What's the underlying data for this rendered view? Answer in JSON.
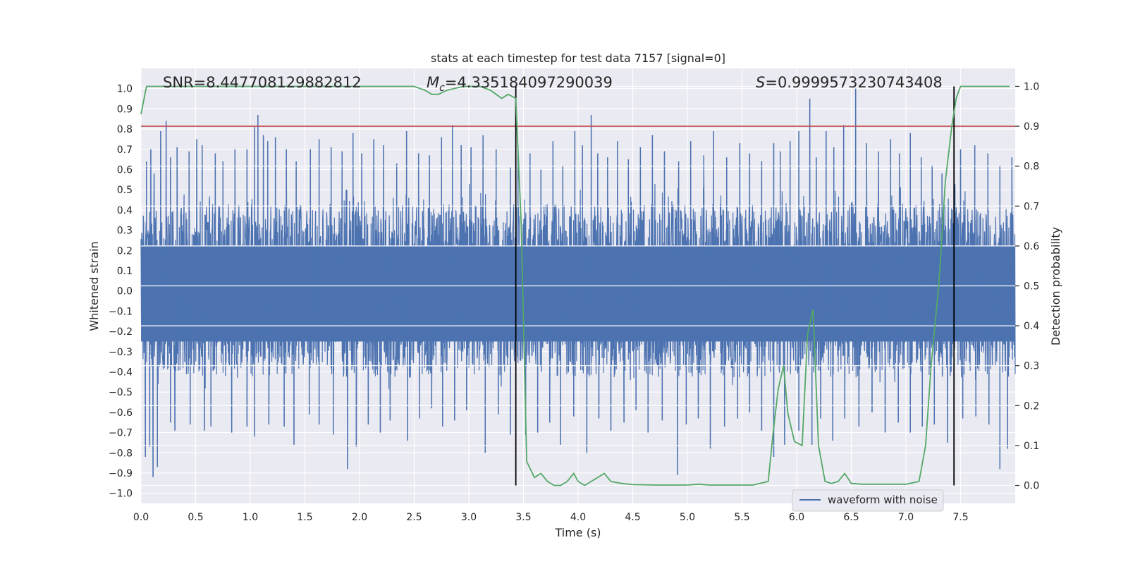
{
  "chart_data": {
    "type": "line",
    "title": "stats at each timestep for test data 7157 [signal=0]",
    "xlabel": "Time (s)",
    "ylabel_left": "Whitened strain",
    "ylabel_right": "Detection probability",
    "xlim": [
      0.0,
      8.0
    ],
    "ylim_left": [
      -1.05,
      1.1
    ],
    "ylim_right": [
      -0.045,
      1.045
    ],
    "x_ticks": [
      "0.0",
      "0.5",
      "1.0",
      "1.5",
      "2.0",
      "2.5",
      "3.0",
      "3.5",
      "4.0",
      "4.5",
      "5.0",
      "5.5",
      "6.0",
      "6.5",
      "7.0",
      "7.5"
    ],
    "x_tick_values": [
      0.0,
      0.5,
      1.0,
      1.5,
      2.0,
      2.5,
      3.0,
      3.5,
      4.0,
      4.5,
      5.0,
      5.5,
      6.0,
      6.5,
      7.0,
      7.5
    ],
    "y_ticks_left": [
      "1.0",
      "0.9",
      "0.8",
      "0.7",
      "0.6",
      "0.5",
      "0.4",
      "0.3",
      "0.2",
      "0.1",
      "0.0",
      "−0.1",
      "−0.2",
      "−0.3",
      "−0.4",
      "−0.5",
      "−0.6",
      "−0.7",
      "−0.8",
      "−0.9",
      "−1.0"
    ],
    "y_tick_values_left": [
      1.0,
      0.9,
      0.8,
      0.7,
      0.6,
      0.5,
      0.4,
      0.3,
      0.2,
      0.1,
      0.0,
      -0.1,
      -0.2,
      -0.3,
      -0.4,
      -0.5,
      -0.6,
      -0.7,
      -0.8,
      -0.9,
      -1.0
    ],
    "y_ticks_right": [
      "1.0",
      "0.9",
      "0.8",
      "0.7",
      "0.6",
      "0.5",
      "0.4",
      "0.3",
      "0.2",
      "0.1",
      "0.0"
    ],
    "y_tick_values_right": [
      1.0,
      0.9,
      0.8,
      0.7,
      0.6,
      0.5,
      0.4,
      0.3,
      0.2,
      0.1,
      0.0
    ],
    "annotations": {
      "snr": "SNR=8.447708129882812",
      "mc_symbol": "M",
      "mc_sub": "c",
      "mc_value": "=4.335184097290039",
      "s_symbol": "S",
      "s_value": "=0.9999573230743408"
    },
    "threshold": {
      "value": 0.9,
      "axis": "right",
      "color": "#c44e52"
    },
    "vertical_markers": [
      3.43,
      7.44
    ],
    "marker_range_right": [
      0.0,
      1.0
    ],
    "waveform": {
      "name": "waveform with noise",
      "color": "#4c72b0",
      "typical_range": [
        -0.45,
        0.5
      ],
      "spikes": [
        [
          0.05,
          0.64
        ],
        [
          0.09,
          0.7
        ],
        [
          0.12,
          0.58
        ],
        [
          0.18,
          0.79
        ],
        [
          0.23,
          0.84
        ],
        [
          0.27,
          0.66
        ],
        [
          0.33,
          0.71
        ],
        [
          0.44,
          0.69
        ],
        [
          0.51,
          0.75
        ],
        [
          0.56,
          0.72
        ],
        [
          0.68,
          0.68
        ],
        [
          0.75,
          0.64
        ],
        [
          0.86,
          0.7
        ],
        [
          0.97,
          0.7
        ],
        [
          1.04,
          0.81
        ],
        [
          1.07,
          0.87
        ],
        [
          1.12,
          0.77
        ],
        [
          1.16,
          0.74
        ],
        [
          1.23,
          0.76
        ],
        [
          1.33,
          0.7
        ],
        [
          1.42,
          0.64
        ],
        [
          1.55,
          0.7
        ],
        [
          1.63,
          0.75
        ],
        [
          1.74,
          0.71
        ],
        [
          1.84,
          0.69
        ],
        [
          1.94,
          0.78
        ],
        [
          2.02,
          0.68
        ],
        [
          2.13,
          0.75
        ],
        [
          2.22,
          0.72
        ],
        [
          2.34,
          0.63
        ],
        [
          2.43,
          0.79
        ],
        [
          2.54,
          0.68
        ],
        [
          2.64,
          0.67
        ],
        [
          2.75,
          0.76
        ],
        [
          2.85,
          0.82
        ],
        [
          2.93,
          0.72
        ],
        [
          3.02,
          0.71
        ],
        [
          3.13,
          0.77
        ],
        [
          3.25,
          0.7
        ],
        [
          3.38,
          0.61
        ],
        [
          3.45,
          0.72
        ],
        [
          3.56,
          0.68
        ],
        [
          3.66,
          0.6
        ],
        [
          3.77,
          0.74
        ],
        [
          3.86,
          0.62
        ],
        [
          3.97,
          0.79
        ],
        [
          4.04,
          0.72
        ],
        [
          4.12,
          0.87
        ],
        [
          4.18,
          0.68
        ],
        [
          4.27,
          0.66
        ],
        [
          4.36,
          0.74
        ],
        [
          4.46,
          0.65
        ],
        [
          4.57,
          0.71
        ],
        [
          4.68,
          0.77
        ],
        [
          4.79,
          0.69
        ],
        [
          4.92,
          0.64
        ],
        [
          5.03,
          0.74
        ],
        [
          5.15,
          0.67
        ],
        [
          5.24,
          0.79
        ],
        [
          5.36,
          0.66
        ],
        [
          5.48,
          0.73
        ],
        [
          5.57,
          0.68
        ],
        [
          5.68,
          0.64
        ],
        [
          5.79,
          0.73
        ],
        [
          5.85,
          0.69
        ],
        [
          5.94,
          0.74
        ],
        [
          6.02,
          0.79
        ],
        [
          6.12,
          0.95
        ],
        [
          6.18,
          0.66
        ],
        [
          6.27,
          0.79
        ],
        [
          6.34,
          0.71
        ],
        [
          6.43,
          0.82
        ],
        [
          6.54,
          1.0
        ],
        [
          6.64,
          0.73
        ],
        [
          6.75,
          0.69
        ],
        [
          6.86,
          0.75
        ],
        [
          6.94,
          0.68
        ],
        [
          7.04,
          0.78
        ],
        [
          7.14,
          0.66
        ],
        [
          7.24,
          0.62
        ],
        [
          7.33,
          0.58
        ],
        [
          7.5,
          0.7
        ],
        [
          7.63,
          0.72
        ],
        [
          7.75,
          0.68
        ],
        [
          7.86,
          0.62
        ],
        [
          7.97,
          0.66
        ]
      ],
      "neg_spikes": [
        [
          0.04,
          -0.82
        ],
        [
          0.08,
          -0.77
        ],
        [
          0.11,
          -0.92
        ],
        [
          0.15,
          -0.87
        ],
        [
          0.27,
          -0.65
        ],
        [
          0.31,
          -0.69
        ],
        [
          0.45,
          -0.66
        ],
        [
          0.58,
          -0.69
        ],
        [
          0.64,
          -0.67
        ],
        [
          0.83,
          -0.7
        ],
        [
          0.97,
          -0.67
        ],
        [
          1.04,
          -0.72
        ],
        [
          1.17,
          -0.66
        ],
        [
          1.31,
          -0.67
        ],
        [
          1.4,
          -0.76
        ],
        [
          1.54,
          -0.61
        ],
        [
          1.63,
          -0.66
        ],
        [
          1.76,
          -0.71
        ],
        [
          1.89,
          -0.88
        ],
        [
          1.97,
          -0.77
        ],
        [
          2.08,
          -0.66
        ],
        [
          2.19,
          -0.7
        ],
        [
          2.28,
          -0.64
        ],
        [
          2.44,
          -0.74
        ],
        [
          2.55,
          -0.63
        ],
        [
          2.66,
          -0.58
        ],
        [
          2.76,
          -0.67
        ],
        [
          2.87,
          -0.64
        ],
        [
          2.98,
          -0.59
        ],
        [
          3.15,
          -0.8
        ],
        [
          3.27,
          -0.61
        ],
        [
          3.38,
          -0.71
        ],
        [
          3.52,
          -0.71
        ],
        [
          3.63,
          -0.7
        ],
        [
          3.74,
          -0.65
        ],
        [
          3.84,
          -0.76
        ],
        [
          3.96,
          -0.62
        ],
        [
          4.08,
          -0.8
        ],
        [
          4.19,
          -0.63
        ],
        [
          4.3,
          -0.69
        ],
        [
          4.42,
          -0.65
        ],
        [
          4.53,
          -0.59
        ],
        [
          4.64,
          -0.7
        ],
        [
          4.77,
          -0.64
        ],
        [
          4.91,
          -0.91
        ],
        [
          4.99,
          -0.66
        ],
        [
          5.1,
          -0.63
        ],
        [
          5.21,
          -0.78
        ],
        [
          5.34,
          -0.67
        ],
        [
          5.46,
          -0.63
        ],
        [
          5.57,
          -0.6
        ],
        [
          5.68,
          -0.69
        ],
        [
          5.79,
          -0.82
        ],
        [
          5.89,
          -0.76
        ],
        [
          6.02,
          -0.69
        ],
        [
          6.14,
          -0.76
        ],
        [
          6.22,
          -0.63
        ],
        [
          6.33,
          -0.74
        ],
        [
          6.44,
          -0.63
        ],
        [
          6.57,
          -0.67
        ],
        [
          6.69,
          -0.6
        ],
        [
          6.81,
          -0.7
        ],
        [
          6.93,
          -0.65
        ],
        [
          7.04,
          -0.7
        ],
        [
          7.15,
          -0.67
        ],
        [
          7.26,
          -0.66
        ],
        [
          7.38,
          -0.75
        ],
        [
          7.52,
          -0.63
        ],
        [
          7.64,
          -0.62
        ],
        [
          7.76,
          -0.66
        ],
        [
          7.86,
          -0.88
        ],
        [
          7.93,
          -0.78
        ]
      ]
    },
    "probability": {
      "color": "#55a868",
      "x": [
        0.0,
        0.05,
        0.1,
        0.5,
        1.0,
        1.5,
        2.0,
        2.5,
        2.6,
        2.66,
        2.72,
        2.8,
        2.95,
        3.1,
        3.2,
        3.3,
        3.36,
        3.43,
        3.48,
        3.53,
        3.6,
        3.66,
        3.72,
        3.78,
        3.84,
        3.9,
        3.96,
        4.0,
        4.06,
        4.12,
        4.18,
        4.24,
        4.3,
        4.4,
        4.5,
        4.7,
        4.9,
        5.0,
        5.1,
        5.2,
        5.4,
        5.6,
        5.74,
        5.78,
        5.83,
        5.88,
        5.92,
        5.98,
        6.05,
        6.1,
        6.15,
        6.2,
        6.26,
        6.32,
        6.38,
        6.44,
        6.5,
        6.6,
        6.8,
        7.0,
        7.12,
        7.18,
        7.23,
        7.3,
        7.36,
        7.42,
        7.46,
        7.5,
        7.56,
        7.65,
        7.8,
        7.95
      ],
      "y": [
        0.93,
        1.0,
        1.0,
        1.0,
        1.0,
        1.0,
        1.0,
        1.0,
        0.99,
        0.98,
        0.98,
        0.99,
        1.0,
        1.0,
        0.99,
        0.97,
        0.98,
        0.97,
        0.65,
        0.06,
        0.02,
        0.03,
        0.01,
        0.0,
        0.0,
        0.01,
        0.03,
        0.01,
        0.0,
        0.01,
        0.02,
        0.03,
        0.01,
        0.005,
        0.002,
        0.001,
        0.001,
        0.001,
        0.003,
        0.001,
        0.001,
        0.001,
        0.01,
        0.12,
        0.24,
        0.3,
        0.18,
        0.11,
        0.1,
        0.38,
        0.44,
        0.1,
        0.01,
        0.005,
        0.01,
        0.03,
        0.005,
        0.003,
        0.003,
        0.003,
        0.01,
        0.1,
        0.3,
        0.5,
        0.76,
        0.9,
        0.97,
        1.0,
        1.0,
        1.0,
        1.0,
        1.0
      ]
    }
  }
}
